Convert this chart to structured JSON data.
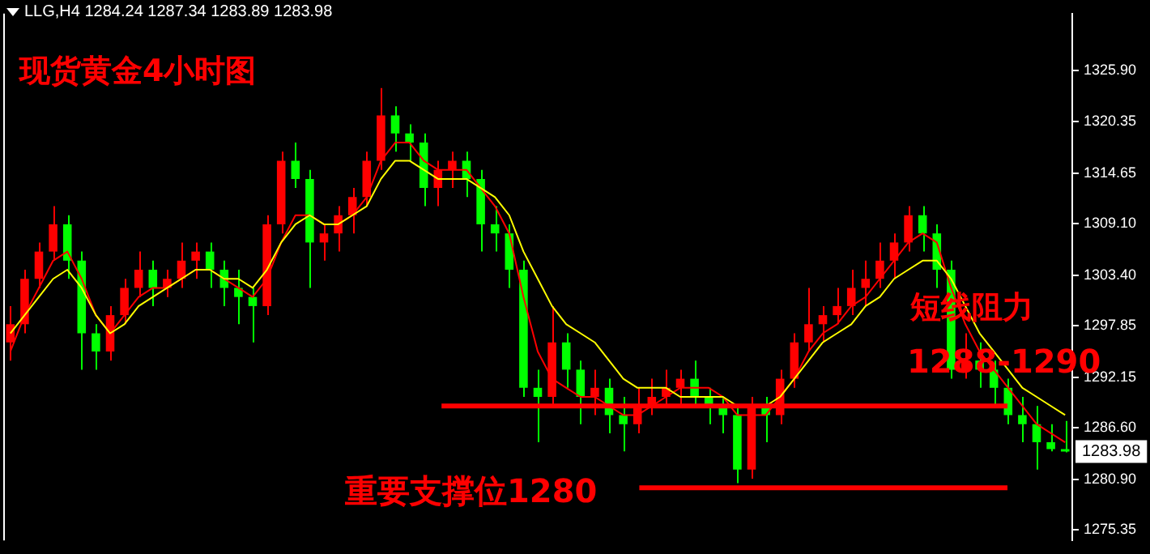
{
  "chart_data": {
    "type": "candlestick",
    "title": "现货黄金4小时图",
    "subtitle": "LLG,H4 1284.24 1287.34 1283.89 1283.98",
    "categories": [
      null,
      null,
      null,
      null,
      null,
      null,
      null,
      null,
      null,
      null,
      null,
      null,
      null,
      null,
      null,
      null,
      null,
      null,
      null,
      null,
      null,
      null,
      null,
      null,
      null,
      null,
      null,
      null,
      null,
      null,
      null,
      null,
      null,
      null,
      null,
      null,
      null,
      null,
      null,
      null,
      null,
      null,
      null,
      null,
      null,
      null,
      null,
      null,
      null,
      null,
      null,
      null,
      null,
      null,
      null,
      null,
      null,
      null,
      null,
      null,
      null,
      null,
      null,
      null,
      null,
      null,
      null,
      null,
      null,
      null,
      null,
      null,
      null,
      null,
      null
    ],
    "ohlc": [
      [
        1296,
        1300,
        1294,
        1298
      ],
      [
        1298,
        1304,
        1297,
        1303
      ],
      [
        1303,
        1307,
        1302,
        1306
      ],
      [
        1306,
        1311,
        1305,
        1309
      ],
      [
        1309,
        1310,
        1303,
        1305
      ],
      [
        1305,
        1306,
        1293,
        1297
      ],
      [
        1297,
        1298,
        1293,
        1295
      ],
      [
        1295,
        1300,
        1294,
        1299
      ],
      [
        1299,
        1303,
        1298,
        1302
      ],
      [
        1302,
        1306,
        1301,
        1304
      ],
      [
        1304,
        1305,
        1300,
        1302
      ],
      [
        1302,
        1304,
        1301,
        1303
      ],
      [
        1303,
        1307,
        1302,
        1305
      ],
      [
        1305,
        1307,
        1303,
        1306
      ],
      [
        1306,
        1307,
        1302,
        1304
      ],
      [
        1304,
        1305,
        1300,
        1302
      ],
      [
        1302,
        1304,
        1298,
        1301
      ],
      [
        1301,
        1302,
        1296,
        1300
      ],
      [
        1300,
        1310,
        1299,
        1309
      ],
      [
        1309,
        1317,
        1308,
        1316
      ],
      [
        1316,
        1318,
        1313,
        1314
      ],
      [
        1314,
        1315,
        1302,
        1307
      ],
      [
        1307,
        1309,
        1305,
        1308
      ],
      [
        1308,
        1311,
        1306,
        1310
      ],
      [
        1310,
        1313,
        1308,
        1312
      ],
      [
        1312,
        1317,
        1311,
        1316
      ],
      [
        1316,
        1324,
        1315,
        1321
      ],
      [
        1321,
        1322,
        1317,
        1319
      ],
      [
        1319,
        1320,
        1316,
        1318
      ],
      [
        1318,
        1319,
        1311,
        1313
      ],
      [
        1313,
        1316,
        1311,
        1315
      ],
      [
        1315,
        1317,
        1313,
        1316
      ],
      [
        1316,
        1317,
        1312,
        1314
      ],
      [
        1314,
        1315,
        1306,
        1309
      ],
      [
        1309,
        1311,
        1306,
        1308
      ],
      [
        1308,
        1309,
        1302,
        1304
      ],
      [
        1304,
        1305,
        1290,
        1291
      ],
      [
        1291,
        1293,
        1285,
        1290
      ],
      [
        1290,
        1300,
        1289,
        1296
      ],
      [
        1296,
        1297,
        1291,
        1293
      ],
      [
        1293,
        1294,
        1287,
        1290
      ],
      [
        1290,
        1293,
        1288,
        1291
      ],
      [
        1291,
        1292,
        1286,
        1288
      ],
      [
        1288,
        1290,
        1284,
        1287
      ],
      [
        1287,
        1291,
        1286,
        1289
      ],
      [
        1289,
        1292,
        1288,
        1290
      ],
      [
        1290,
        1293,
        1289,
        1291
      ],
      [
        1291,
        1293,
        1289,
        1292
      ],
      [
        1292,
        1294,
        1289,
        1290
      ],
      [
        1290,
        1291,
        1287,
        1289
      ],
      [
        1289,
        1290,
        1286,
        1288
      ],
      [
        1288,
        1289,
        1280.5,
        1282
      ],
      [
        1282,
        1290,
        1281,
        1289
      ],
      [
        1289,
        1290,
        1285,
        1288
      ],
      [
        1288,
        1293,
        1287,
        1292
      ],
      [
        1292,
        1297,
        1291,
        1296
      ],
      [
        1296,
        1302,
        1295,
        1298
      ],
      [
        1298,
        1300,
        1296,
        1299
      ],
      [
        1299,
        1302,
        1298,
        1300
      ],
      [
        1300,
        1304,
        1299,
        1302
      ],
      [
        1302,
        1305,
        1300,
        1303
      ],
      [
        1303,
        1307,
        1302,
        1305
      ],
      [
        1305,
        1308,
        1303,
        1307
      ],
      [
        1307,
        1311,
        1306,
        1310
      ],
      [
        1310,
        1311,
        1306,
        1308
      ],
      [
        1308,
        1309,
        1302,
        1304
      ],
      [
        1304,
        1305,
        1292,
        1293
      ],
      [
        1293,
        1297,
        1292,
        1294
      ],
      [
        1294,
        1296,
        1291,
        1293
      ],
      [
        1293,
        1294,
        1289,
        1291
      ],
      [
        1291,
        1292,
        1287,
        1288
      ],
      [
        1288,
        1290,
        1285,
        1287
      ],
      [
        1287,
        1289,
        1282,
        1285
      ],
      [
        1285,
        1287,
        1284,
        1284.24
      ],
      [
        1284.24,
        1287.34,
        1283.89,
        1283.98
      ]
    ],
    "colors": [
      "#ff0000",
      "#ff0000",
      "#ff0000",
      "#ff0000",
      "#00ff00",
      "#00ff00",
      "#00ff00",
      "#ff0000",
      "#ff0000",
      "#ff0000",
      "#00ff00",
      "#ff0000",
      "#ff0000",
      "#ff0000",
      "#00ff00",
      "#00ff00",
      "#00ff00",
      "#00ff00",
      "#ff0000",
      "#ff0000",
      "#00ff00",
      "#00ff00",
      "#ff0000",
      "#ff0000",
      "#ff0000",
      "#ff0000",
      "#ff0000",
      "#00ff00",
      "#00ff00",
      "#00ff00",
      "#ff0000",
      "#ff0000",
      "#00ff00",
      "#00ff00",
      "#00ff00",
      "#00ff00",
      "#00ff00",
      "#00ff00",
      "#ff0000",
      "#00ff00",
      "#00ff00",
      "#ff0000",
      "#00ff00",
      "#00ff00",
      "#ff0000",
      "#ff0000",
      "#ff0000",
      "#ff0000",
      "#00ff00",
      "#00ff00",
      "#00ff00",
      "#00ff00",
      "#ff0000",
      "#00ff00",
      "#ff0000",
      "#ff0000",
      "#ff0000",
      "#ff0000",
      "#ff0000",
      "#ff0000",
      "#ff0000",
      "#ff0000",
      "#ff0000",
      "#ff0000",
      "#00ff00",
      "#00ff00",
      "#00ff00",
      "#ff0000",
      "#00ff00",
      "#00ff00",
      "#00ff00",
      "#00ff00",
      "#00ff00",
      "#00ff00",
      "#00ff00"
    ],
    "series": [
      {
        "type": "line",
        "color": "#ffff00",
        "values": [
          1297,
          1299,
          1301,
          1303,
          1304,
          1302,
          1299,
          1297,
          1298,
          1300,
          1301,
          1302,
          1303,
          1304,
          1304,
          1303,
          1303,
          1302,
          1304,
          1307,
          1309,
          1310,
          1309,
          1309,
          1310,
          1311,
          1314,
          1316,
          1316,
          1315,
          1314,
          1314,
          1314,
          1313,
          1312,
          1310,
          1306,
          1303,
          1300,
          1298,
          1297,
          1296,
          1294,
          1292,
          1291,
          1291,
          1291,
          1290,
          1290,
          1290,
          1290,
          1289,
          null,
          1289,
          1290,
          1292,
          1294,
          1296,
          1297,
          1298,
          1300,
          1301,
          1303,
          1304,
          1305,
          1305,
          1303,
          1300,
          1297,
          1295,
          1293,
          1291,
          1290,
          1289,
          1288
        ]
      },
      {
        "type": "line",
        "color": "#ff0000",
        "values": [
          1295,
          1299,
          1302,
          1305,
          1306,
          1303,
          1299,
          1297,
          1299,
          1301,
          1302,
          1302,
          1303,
          1304,
          1304,
          1303,
          1302,
          1301,
          1303,
          1307,
          1310,
          1310,
          1309,
          1309,
          1310,
          1312,
          1316,
          1318,
          1318,
          1316,
          1315,
          1315,
          1315,
          1313,
          1311,
          1308,
          1301,
          1295,
          1292,
          1291,
          1290,
          1290,
          1289,
          1288,
          1288,
          1289,
          1290,
          1291,
          1291,
          1291,
          1290,
          1288,
          1288,
          1288,
          1290,
          1292,
          1295,
          1297,
          1298,
          1300,
          1301,
          1303,
          1305,
          1307,
          1308,
          1307,
          1302,
          1298,
          1295,
          1293,
          1291,
          1289,
          1287,
          1286,
          1285
        ]
      }
    ],
    "ylim": [
      1274.2,
      1332.2
    ],
    "yticks": [
      {
        "value": 1275.35,
        "label": "1275.35"
      },
      {
        "value": 1280.9,
        "label": "1280.90"
      },
      {
        "value": 1286.6,
        "label": "1286.60"
      },
      {
        "value": 1292.15,
        "label": "1292.15"
      },
      {
        "value": 1297.85,
        "label": "1297.85"
      },
      {
        "value": 1303.4,
        "label": "1303.40"
      },
      {
        "value": 1309.1,
        "label": "1309.10"
      },
      {
        "value": 1314.65,
        "label": "1314.65"
      },
      {
        "value": 1320.35,
        "label": "1320.35"
      },
      {
        "value": 1325.9,
        "label": "1325.90"
      }
    ],
    "ref_lines": [
      {
        "axis": "y",
        "value": 1289,
        "color": "#ff0000"
      },
      {
        "axis": "y",
        "value": 1280,
        "color": "#ff0000"
      }
    ],
    "annotations": [
      "短线阻力",
      "1288-1290",
      "重要支撑位1280",
      "1283.98"
    ],
    "tick_labels": "y",
    "grid": false,
    "legend": false
  }
}
